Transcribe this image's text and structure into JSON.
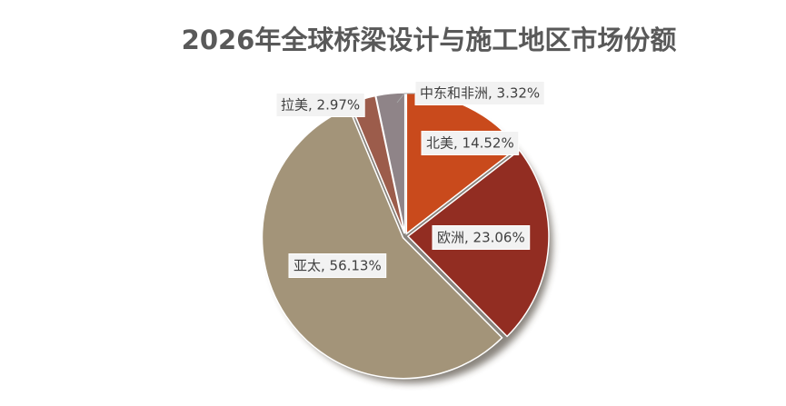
{
  "chart_data": {
    "type": "pie",
    "title": "2026年全球桥梁设计与施工地区市场份额",
    "values": [
      14.52,
      23.06,
      56.13,
      2.97,
      3.32
    ],
    "value_labels": [
      "北美, 14.52%",
      "欧洲, 23.06%",
      "亚太, 56.13%",
      "拉美, 2.97%",
      "中东和非洲, 3.32%"
    ],
    "colors": [
      "#c94a1c",
      "#922d22",
      "#a39479",
      "#9c5c4b",
      "#8f8488"
    ]
  }
}
